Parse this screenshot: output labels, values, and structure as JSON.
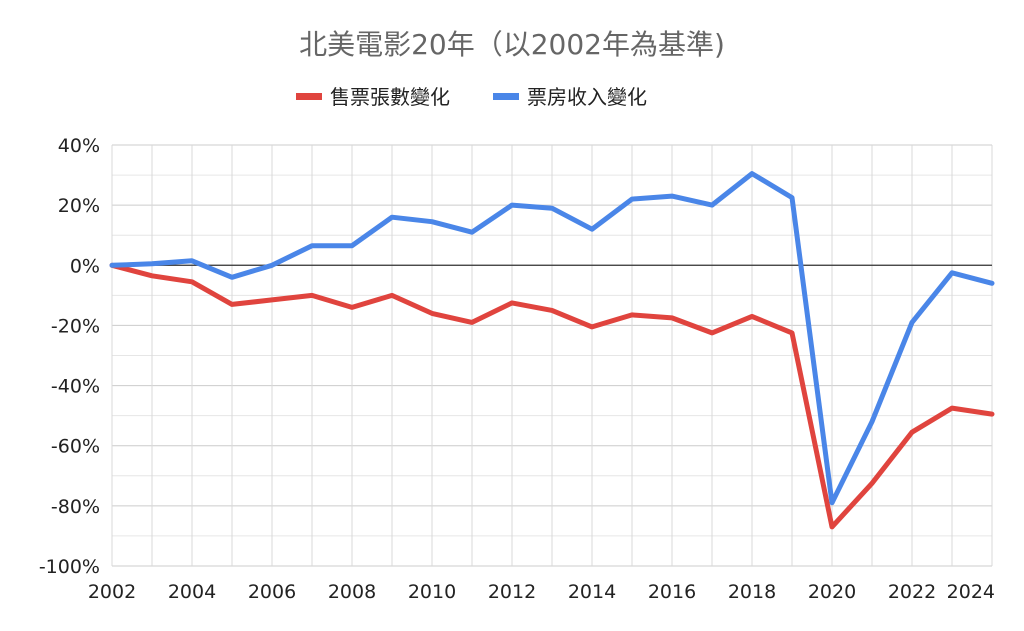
{
  "chart_data": {
    "type": "line",
    "title": "北美電影20年（以2002年為基準)",
    "xlabel": "",
    "ylabel": "",
    "x": [
      2002,
      2003,
      2004,
      2005,
      2006,
      2007,
      2008,
      2009,
      2010,
      2011,
      2012,
      2013,
      2014,
      2015,
      2016,
      2017,
      2018,
      2019,
      2020,
      2021,
      2022,
      2023,
      2024
    ],
    "xticks": [
      "2002",
      "2004",
      "2006",
      "2008",
      "2010",
      "2012",
      "2014",
      "2016",
      "2018",
      "2020",
      "2022",
      "2024"
    ],
    "yticks": [
      "40%",
      "20%",
      "0%",
      "-20%",
      "-40%",
      "-60%",
      "-80%",
      "-100%"
    ],
    "ylim": [
      -100,
      40
    ],
    "grid": true,
    "legend_position": "top-center",
    "series": [
      {
        "name": "售票張數變化",
        "color": "#e0443e",
        "values": [
          0,
          -3.5,
          -5.5,
          -13,
          -11.5,
          -10,
          -14,
          -10,
          -16,
          -19,
          -12.5,
          -15,
          -20.5,
          -16.5,
          -17.5,
          -22.5,
          -17,
          -22.5,
          -87,
          -72.5,
          -55.5,
          -47.5,
          -49.5
        ]
      },
      {
        "name": "票房收入變化",
        "color": "#4a86e8",
        "values": [
          0,
          0.5,
          1.5,
          -4,
          0,
          6.5,
          6.5,
          16,
          14.5,
          11,
          20,
          19,
          12,
          22,
          23,
          20,
          30.5,
          22.5,
          -79,
          -52,
          -19,
          -2.5,
          -6
        ]
      }
    ]
  }
}
